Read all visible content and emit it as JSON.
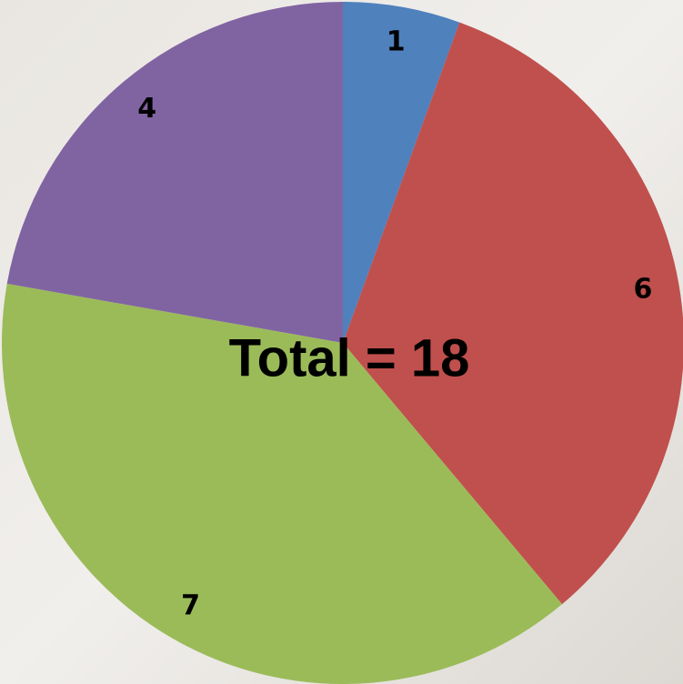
{
  "chart_data": {
    "type": "pie",
    "annotation": "Total = 18",
    "values": [
      1,
      6,
      7,
      4
    ],
    "colors": [
      "#4f81bd",
      "#c0504d",
      "#9bbb59",
      "#8064a2"
    ]
  }
}
